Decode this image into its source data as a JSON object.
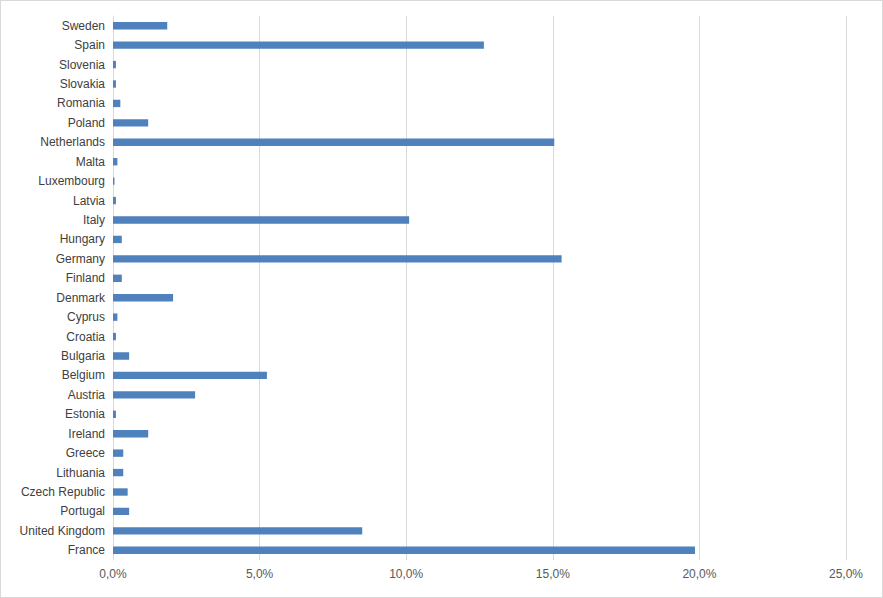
{
  "chart_data": {
    "type": "bar",
    "orientation": "horizontal",
    "categories": [
      "France",
      "United Kingdom",
      "Portugal",
      "Czech Republic",
      "Lithuania",
      "Greece",
      "Ireland",
      "Estonia",
      "Austria",
      "Belgium",
      "Bulgaria",
      "Croatia",
      "Cyprus",
      "Denmark",
      "Finland",
      "Germany",
      "Hungary",
      "Italy",
      "Latvia",
      "Luxembourg",
      "Malta",
      "Netherlands",
      "Poland",
      "Romania",
      "Slovakia",
      "Slovenia",
      "Spain",
      "Sweden"
    ],
    "values": [
      19.85,
      8.5,
      0.55,
      0.5,
      0.35,
      0.35,
      1.2,
      0.1,
      2.8,
      5.25,
      0.55,
      0.1,
      0.15,
      2.05,
      0.3,
      15.3,
      0.3,
      10.1,
      0.1,
      0.05,
      0.15,
      15.05,
      1.2,
      0.25,
      0.1,
      0.1,
      12.65,
      1.85
    ],
    "color": "#4f81bd",
    "xlim": [
      0,
      25
    ],
    "xticks": [
      {
        "value": 0,
        "label": "0,0%"
      },
      {
        "value": 5,
        "label": "5,0%"
      },
      {
        "value": 10,
        "label": "10,0%"
      },
      {
        "value": 15,
        "label": "15,0%"
      },
      {
        "value": 20,
        "label": "20,0%"
      },
      {
        "value": 25,
        "label": "25,0%"
      }
    ],
    "grid": true
  }
}
